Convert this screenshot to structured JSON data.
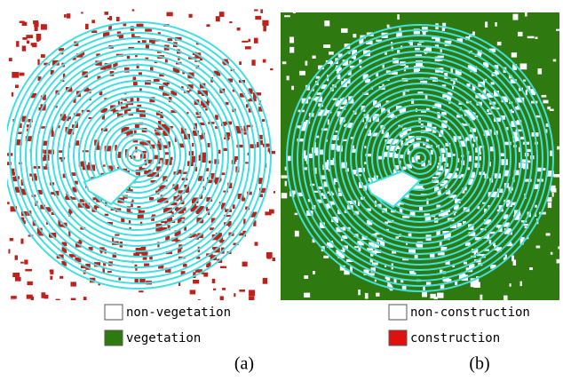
{
  "panels": [
    {
      "legend": [
        {
          "label": "non-vegetation",
          "color": "#ffffff"
        },
        {
          "label": "vegetation",
          "color": "#2f7a10"
        }
      ],
      "caption": "(a)"
    },
    {
      "legend": [
        {
          "label": "non-construction",
          "color": "#ffffff"
        },
        {
          "label": "construction",
          "color": "#e01010"
        }
      ],
      "caption": "(b)"
    }
  ]
}
